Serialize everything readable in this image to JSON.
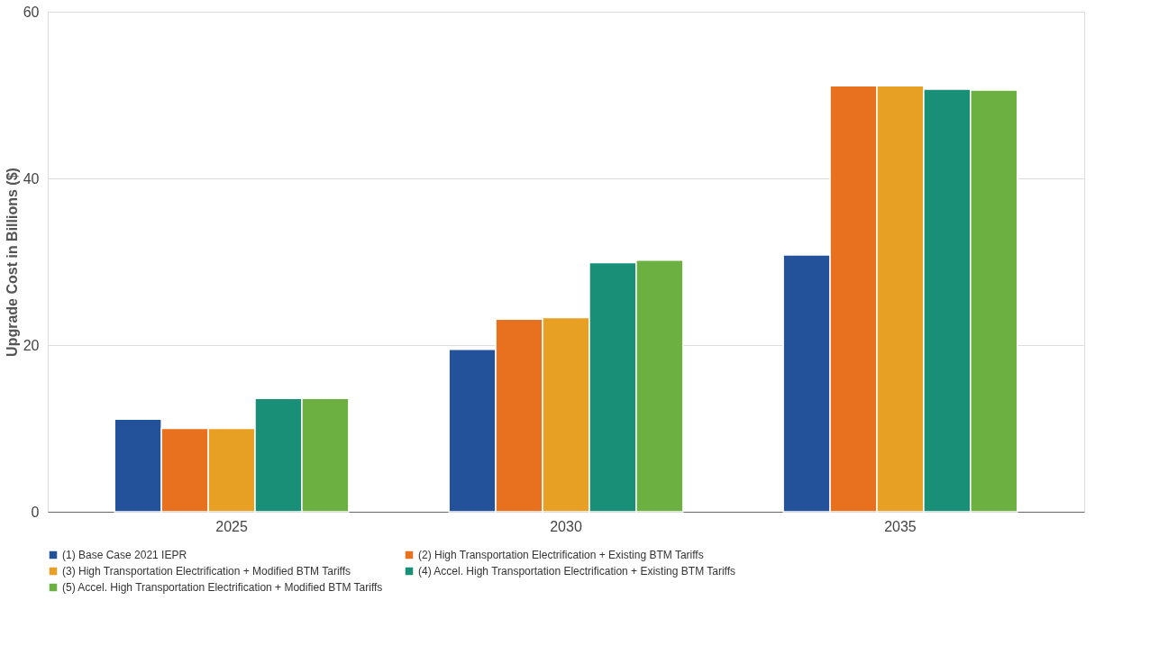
{
  "chart_data": {
    "type": "bar",
    "ylabel": "Upgrade Cost in Billions ($)",
    "categories": [
      "2025",
      "2030",
      "2035"
    ],
    "series": [
      {
        "name": "(1) Base Case 2021 IEPR",
        "color": "#23519a",
        "values": [
          11.1,
          19.5,
          30.8
        ]
      },
      {
        "name": "(2) High Transportation Electrification + Existing BTM Tariffs",
        "color": "#e8711f",
        "values": [
          10.0,
          23.1,
          51.1
        ]
      },
      {
        "name": "(3) High Transportation Electrification + Modified BTM Tariffs",
        "color": "#e8a024",
        "values": [
          10.0,
          23.3,
          51.1
        ]
      },
      {
        "name": "(4) Accel. High Transportation Electrification + Existing BTM Tariffs",
        "color": "#1a8f77",
        "values": [
          13.6,
          29.9,
          50.7
        ]
      },
      {
        "name": "(5) Accel. High Transportation Electrification + Modified BTM Tariffs",
        "color": "#6db042",
        "values": [
          13.6,
          30.2,
          50.6
        ]
      }
    ],
    "ylim": [
      0,
      60
    ],
    "yticks": [
      0,
      20,
      40,
      60
    ],
    "grid": "y",
    "legend": "bottom"
  }
}
